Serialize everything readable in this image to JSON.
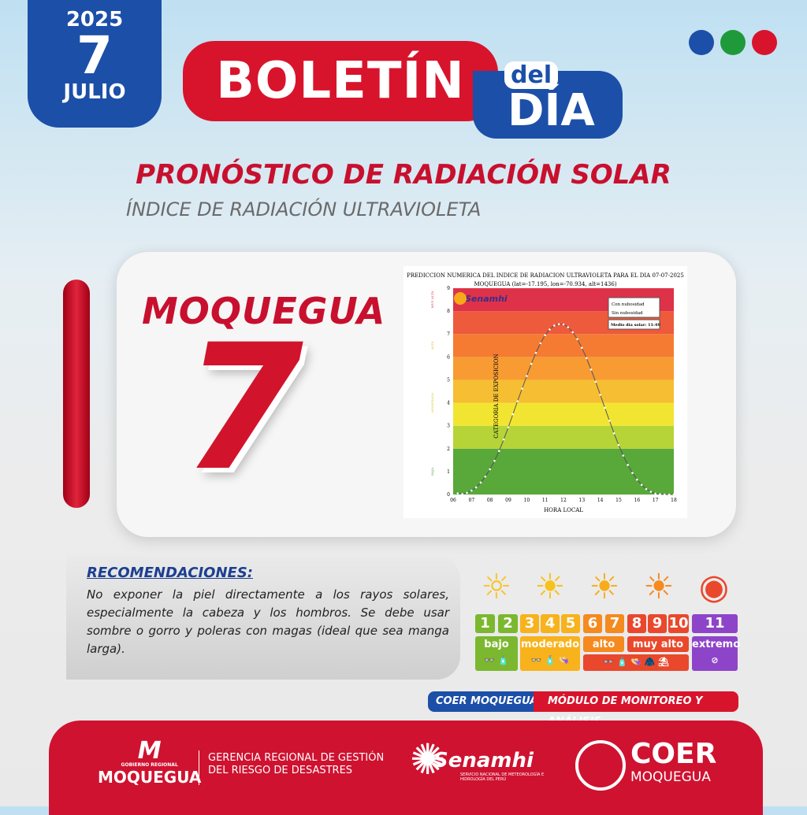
{
  "header": {
    "year": "2025",
    "day": "7",
    "month": "JULIO",
    "title_main": "BOLETÍN",
    "title_small": "del",
    "title_day": "DÍA",
    "dots": [
      "#1c4fa8",
      "#1f9a3a",
      "#d8142c"
    ]
  },
  "headings": {
    "title": "PRONÓSTICO DE RADIACIÓN SOLAR",
    "subtitle": "ÍNDICE DE RADIACIÓN ULTRAVIOLETA"
  },
  "location": {
    "name": "MOQUEGUA",
    "uv_index": "7"
  },
  "chart_data": {
    "type": "line",
    "title": "PREDICCION NUMERICA DEL INDICE DE RADIACION ULTRAVIOLETA PARA EL DIA 07-07-2025",
    "subtitle": "MOQUEGUA (lat=-17.195, lon=-70.934, alt=1436)",
    "xlabel": "HORA LOCAL",
    "ylabel": "CATEGORIA DE EXPOSICION",
    "xlim": [
      6,
      18
    ],
    "ylim": [
      0,
      9
    ],
    "xticks": [
      "06",
      "07",
      "08",
      "09",
      "10",
      "11",
      "12",
      "13",
      "14",
      "15",
      "16",
      "17",
      "18"
    ],
    "yticks": [
      "0",
      "1",
      "2",
      "3",
      "4",
      "5",
      "6",
      "7",
      "8",
      "9"
    ],
    "categories_side": [
      "BAJA",
      "MODERADA",
      "ALTA",
      "MUY ALTA"
    ],
    "legend": [
      "Con nubosidad",
      "Sin nubosidad"
    ],
    "note": "Medio dia solar: 11:49",
    "logo": "Senamhi",
    "bands": [
      {
        "from": 0,
        "to": 2,
        "color": "#58a83a"
      },
      {
        "from": 2,
        "to": 3,
        "color": "#b6d437"
      },
      {
        "from": 3,
        "to": 4,
        "color": "#f2e532"
      },
      {
        "from": 4,
        "to": 5,
        "color": "#f6be33"
      },
      {
        "from": 5,
        "to": 6,
        "color": "#f79b32"
      },
      {
        "from": 6,
        "to": 7,
        "color": "#f47b31"
      },
      {
        "from": 7,
        "to": 8,
        "color": "#ee5a3c"
      },
      {
        "from": 8,
        "to": 9,
        "color": "#de3249"
      }
    ],
    "series": [
      {
        "name": "Sin nubosidad",
        "x": [
          6.25,
          6.5,
          6.75,
          7,
          7.25,
          7.5,
          7.75,
          8,
          8.25,
          8.5,
          8.75,
          9,
          9.25,
          9.5,
          9.75,
          10,
          10.25,
          10.5,
          10.75,
          11,
          11.25,
          11.5,
          11.75,
          12,
          12.25,
          12.5,
          12.75,
          13,
          13.25,
          13.5,
          13.75,
          14,
          14.25,
          14.5,
          14.75,
          15,
          15.25,
          15.5,
          15.75,
          16,
          16.25,
          16.5,
          16.75,
          17,
          17.25,
          17.5,
          17.75,
          18
        ],
        "values": [
          0.05,
          0.02,
          0.07,
          0.17,
          0.31,
          0.52,
          0.78,
          1.1,
          1.47,
          1.9,
          2.4,
          2.93,
          3.5,
          4.07,
          4.62,
          5.17,
          5.7,
          6.18,
          6.6,
          6.95,
          7.2,
          7.37,
          7.43,
          7.42,
          7.3,
          7.08,
          6.78,
          6.4,
          5.95,
          5.45,
          4.92,
          4.35,
          3.78,
          3.22,
          2.67,
          2.16,
          1.7,
          1.29,
          0.94,
          0.65,
          0.42,
          0.24,
          0.12,
          0.04,
          0.01,
          0,
          0,
          0
        ]
      }
    ]
  },
  "recommendations": {
    "title": "RECOMENDACIONES:",
    "text": "No exponer la piel directamente a los rayos solares, especialmente la cabeza y los hombros. Se debe usar sombre o gorro y poleras con magas (ideal que sea manga larga)."
  },
  "uv_scale": {
    "numbers": [
      {
        "n": "1",
        "c": "#7cb82f"
      },
      {
        "n": "2",
        "c": "#7cb82f"
      },
      {
        "n": "3",
        "c": "#f8b21c"
      },
      {
        "n": "4",
        "c": "#f8b21c"
      },
      {
        "n": "5",
        "c": "#f8b21c"
      },
      {
        "n": "6",
        "c": "#f58a1f"
      },
      {
        "n": "7",
        "c": "#f58a1f"
      },
      {
        "n": "8",
        "c": "#e9482c"
      },
      {
        "n": "9",
        "c": "#e9482c"
      },
      {
        "n": "10",
        "c": "#e9482c"
      },
      {
        "n": "11",
        "c": "#8e44c8"
      }
    ],
    "categories": [
      {
        "label": "bajo",
        "icons": "👓 🧴"
      },
      {
        "label": "moderado",
        "icons": "👓 🧴 👒"
      },
      {
        "label": "alto",
        "icons": ""
      },
      {
        "label": "muy alto",
        "icons": ""
      },
      {
        "label": "extremo",
        "icons": "⊘"
      }
    ],
    "shared_icons": "👓 🧴 👒 🧥 ⛱"
  },
  "tags": {
    "left": "COER MOQUEGUA",
    "right": "MÓDULO DE MONITOREO Y ANÁLISIS"
  },
  "footer": {
    "gob_small": "GOBIERNO REGIONAL",
    "gob_name": "MOQUEGUA",
    "gerencia": "GERENCIA REGIONAL DE GESTIÓN DEL RIESGO DE DESASTRES",
    "senamhi": "Senamhi",
    "senamhi_sub": "SERVICIO NACIONAL DE METEOROLOGÍA E HIDROLOGÍA DEL PERÚ",
    "coer": "COER",
    "coer_sub": "MOQUEGUA"
  }
}
